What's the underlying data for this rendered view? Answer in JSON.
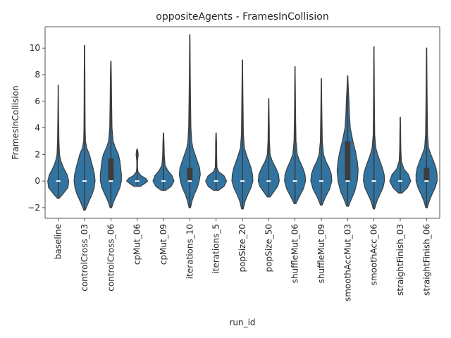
{
  "chart_data": {
    "type": "violin",
    "title": "oppositeAgents - FramesInCollision",
    "xlabel": "run_id",
    "ylabel": "FramesInCollision",
    "ylim": [
      -2.8,
      11.6
    ],
    "yticks": [
      -2,
      0,
      2,
      4,
      6,
      8,
      10
    ],
    "grid": false,
    "colors": {
      "violin": "#3274a1",
      "box": "#3d3d3d",
      "median": "#ffffff",
      "axis": "#262626"
    },
    "categories": [
      "baseline",
      "controlCross_03",
      "controlCross_06",
      "cpMut_06",
      "cpMut_09",
      "iterations_10",
      "iterations_5",
      "popSize_20",
      "popSize_50",
      "shuffleMut_06",
      "shuffleMut_09",
      "smoothAccMut_03",
      "smoothAcc_06",
      "straightFinish_03",
      "straightFinish_06"
    ],
    "violins": [
      {
        "range": [
          -1.3,
          7.2
        ],
        "median": 0,
        "q1": 0,
        "q3": 0,
        "density": [
          [
            -1.3,
            0.05
          ],
          [
            -1.0,
            0.25
          ],
          [
            -0.5,
            0.55
          ],
          [
            0,
            0.6
          ],
          [
            0.5,
            0.5
          ],
          [
            1,
            0.3
          ],
          [
            1.5,
            0.15
          ],
          [
            2,
            0.07
          ],
          [
            3,
            0.04
          ],
          [
            4,
            0.03
          ],
          [
            5,
            0.02
          ],
          [
            6,
            0.012
          ],
          [
            7.2,
            0.005
          ]
        ]
      },
      {
        "range": [
          -2.2,
          10.2
        ],
        "median": 0,
        "q1": 0,
        "q3": 0,
        "density": [
          [
            -2.2,
            0.02
          ],
          [
            -1.5,
            0.15
          ],
          [
            -1.0,
            0.25
          ],
          [
            -0.5,
            0.32
          ],
          [
            0,
            0.35
          ],
          [
            0.5,
            0.33
          ],
          [
            1,
            0.28
          ],
          [
            1.5,
            0.22
          ],
          [
            2,
            0.16
          ],
          [
            2.5,
            0.07
          ],
          [
            3,
            0.03
          ],
          [
            4,
            0.02
          ],
          [
            6,
            0.015
          ],
          [
            8,
            0.012
          ],
          [
            10.2,
            0.005
          ]
        ]
      },
      {
        "range": [
          -2.0,
          9.0
        ],
        "median": 0,
        "q1": 0,
        "q3": 1.7,
        "density": [
          [
            -2.0,
            0.02
          ],
          [
            -1.5,
            0.08
          ],
          [
            -1.0,
            0.16
          ],
          [
            -0.5,
            0.24
          ],
          [
            0,
            0.28
          ],
          [
            0.5,
            0.28
          ],
          [
            1,
            0.26
          ],
          [
            1.5,
            0.24
          ],
          [
            2,
            0.2
          ],
          [
            2.5,
            0.12
          ],
          [
            3,
            0.06
          ],
          [
            4,
            0.03
          ],
          [
            6,
            0.02
          ],
          [
            8,
            0.012
          ],
          [
            9.0,
            0.005
          ]
        ]
      },
      {
        "range": [
          -0.4,
          2.4
        ],
        "median": 0,
        "q1": 0,
        "q3": 0,
        "density": [
          [
            -0.4,
            0.25
          ],
          [
            -0.2,
            0.55
          ],
          [
            0,
            0.8
          ],
          [
            0.2,
            0.65
          ],
          [
            0.4,
            0.3
          ],
          [
            0.7,
            0.06
          ],
          [
            1,
            0.03
          ],
          [
            1.5,
            0.03
          ],
          [
            1.8,
            0.06
          ],
          [
            2.0,
            0.08
          ],
          [
            2.2,
            0.06
          ],
          [
            2.4,
            0.02
          ]
        ]
      },
      {
        "range": [
          -0.7,
          3.6
        ],
        "median": 0,
        "q1": 0,
        "q3": 0,
        "density": [
          [
            -0.7,
            0.12
          ],
          [
            -0.4,
            0.4
          ],
          [
            0,
            0.55
          ],
          [
            0.4,
            0.45
          ],
          [
            0.8,
            0.22
          ],
          [
            1.2,
            0.08
          ],
          [
            2,
            0.04
          ],
          [
            2.8,
            0.03
          ],
          [
            3.6,
            0.01
          ]
        ]
      },
      {
        "range": [
          -2.0,
          11.0
        ],
        "median": 0,
        "q1": 0,
        "q3": 1,
        "density": [
          [
            -2.0,
            0.02
          ],
          [
            -1.5,
            0.06
          ],
          [
            -1.0,
            0.12
          ],
          [
            -0.5,
            0.2
          ],
          [
            0,
            0.25
          ],
          [
            0.5,
            0.28
          ],
          [
            1,
            0.26
          ],
          [
            1.5,
            0.2
          ],
          [
            2,
            0.14
          ],
          [
            2.5,
            0.08
          ],
          [
            3,
            0.05
          ],
          [
            4,
            0.03
          ],
          [
            6,
            0.02
          ],
          [
            8,
            0.012
          ],
          [
            11.0,
            0.004
          ]
        ]
      },
      {
        "range": [
          -0.7,
          3.6
        ],
        "median": 0,
        "q1": 0,
        "q3": 0,
        "density": [
          [
            -0.7,
            0.15
          ],
          [
            -0.4,
            0.45
          ],
          [
            0,
            0.6
          ],
          [
            0.4,
            0.45
          ],
          [
            0.7,
            0.15
          ],
          [
            1,
            0.05
          ],
          [
            2,
            0.03
          ],
          [
            2.8,
            0.03
          ],
          [
            3.6,
            0.01
          ]
        ]
      },
      {
        "range": [
          -2.1,
          9.1
        ],
        "median": 0,
        "q1": 0,
        "q3": 0,
        "density": [
          [
            -2.1,
            0.02
          ],
          [
            -1.5,
            0.07
          ],
          [
            -1.0,
            0.14
          ],
          [
            -0.5,
            0.22
          ],
          [
            0,
            0.27
          ],
          [
            0.5,
            0.26
          ],
          [
            1,
            0.22
          ],
          [
            1.5,
            0.16
          ],
          [
            2,
            0.1
          ],
          [
            2.5,
            0.05
          ],
          [
            3.5,
            0.025
          ],
          [
            6,
            0.015
          ],
          [
            9.1,
            0.004
          ]
        ]
      },
      {
        "range": [
          -1.2,
          6.2
        ],
        "median": 0,
        "q1": 0,
        "q3": 0,
        "density": [
          [
            -1.2,
            0.06
          ],
          [
            -0.8,
            0.22
          ],
          [
            -0.4,
            0.38
          ],
          [
            0,
            0.45
          ],
          [
            0.5,
            0.42
          ],
          [
            1,
            0.3
          ],
          [
            1.5,
            0.15
          ],
          [
            2,
            0.06
          ],
          [
            3,
            0.03
          ],
          [
            4.5,
            0.02
          ],
          [
            6.2,
            0.005
          ]
        ]
      },
      {
        "range": [
          -1.7,
          8.6
        ],
        "median": 0,
        "q1": 0,
        "q3": 0,
        "density": [
          [
            -1.7,
            0.03
          ],
          [
            -1.2,
            0.15
          ],
          [
            -0.6,
            0.3
          ],
          [
            0,
            0.38
          ],
          [
            0.5,
            0.36
          ],
          [
            1,
            0.28
          ],
          [
            1.5,
            0.17
          ],
          [
            2,
            0.08
          ],
          [
            3,
            0.035
          ],
          [
            5,
            0.02
          ],
          [
            7,
            0.012
          ],
          [
            8.6,
            0.004
          ]
        ]
      },
      {
        "range": [
          -1.8,
          7.7
        ],
        "median": 0,
        "q1": 0,
        "q3": 0,
        "density": [
          [
            -1.8,
            0.03
          ],
          [
            -1.2,
            0.15
          ],
          [
            -0.6,
            0.3
          ],
          [
            0,
            0.38
          ],
          [
            0.5,
            0.36
          ],
          [
            1,
            0.28
          ],
          [
            1.5,
            0.16
          ],
          [
            2,
            0.08
          ],
          [
            3,
            0.035
          ],
          [
            5,
            0.02
          ],
          [
            7.7,
            0.004
          ]
        ]
      },
      {
        "range": [
          -1.9,
          7.9
        ],
        "median": 0,
        "q1": 0,
        "q3": 3,
        "density": [
          [
            -1.9,
            0.02
          ],
          [
            -1.4,
            0.08
          ],
          [
            -0.8,
            0.16
          ],
          [
            0,
            0.22
          ],
          [
            0.8,
            0.24
          ],
          [
            1.5,
            0.22
          ],
          [
            2.2,
            0.18
          ],
          [
            3,
            0.12
          ],
          [
            4,
            0.06
          ],
          [
            5,
            0.04
          ],
          [
            6,
            0.03
          ],
          [
            7,
            0.015
          ],
          [
            7.9,
            0.004
          ]
        ]
      },
      {
        "range": [
          -2.1,
          10.1
        ],
        "median": 0,
        "q1": 0,
        "q3": 0,
        "density": [
          [
            -2.1,
            0.02
          ],
          [
            -1.5,
            0.1
          ],
          [
            -1.0,
            0.2
          ],
          [
            -0.5,
            0.3
          ],
          [
            0,
            0.35
          ],
          [
            0.5,
            0.34
          ],
          [
            1,
            0.28
          ],
          [
            1.5,
            0.2
          ],
          [
            2,
            0.12
          ],
          [
            2.5,
            0.06
          ],
          [
            3.5,
            0.025
          ],
          [
            6,
            0.015
          ],
          [
            10.1,
            0.004
          ]
        ]
      },
      {
        "range": [
          -0.9,
          4.8
        ],
        "median": 0,
        "q1": 0,
        "q3": 0,
        "density": [
          [
            -0.9,
            0.1
          ],
          [
            -0.5,
            0.4
          ],
          [
            0,
            0.58
          ],
          [
            0.5,
            0.45
          ],
          [
            0.9,
            0.2
          ],
          [
            1.5,
            0.06
          ],
          [
            2.5,
            0.03
          ],
          [
            3.8,
            0.02
          ],
          [
            4.8,
            0.005
          ]
        ]
      },
      {
        "range": [
          -2.0,
          10.0
        ],
        "median": 0,
        "q1": 0,
        "q3": 1,
        "density": [
          [
            -2.0,
            0.02
          ],
          [
            -1.5,
            0.07
          ],
          [
            -1.0,
            0.14
          ],
          [
            -0.5,
            0.22
          ],
          [
            0,
            0.27
          ],
          [
            0.5,
            0.27
          ],
          [
            1,
            0.24
          ],
          [
            1.5,
            0.18
          ],
          [
            2,
            0.11
          ],
          [
            2.5,
            0.05
          ],
          [
            3.5,
            0.025
          ],
          [
            6,
            0.015
          ],
          [
            10.0,
            0.004
          ]
        ]
      }
    ]
  }
}
